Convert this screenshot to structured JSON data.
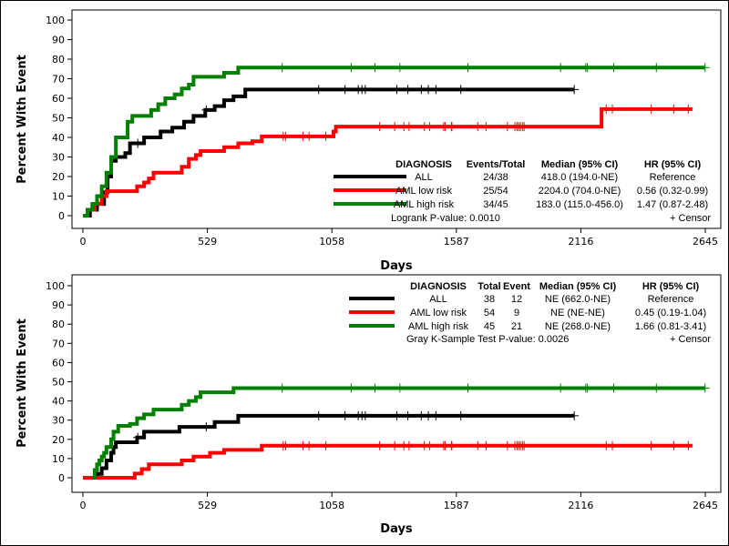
{
  "chart_data": [
    {
      "type": "line",
      "step": true,
      "xlabel": "Days",
      "ylabel": "Percent With Event",
      "xlim": [
        0,
        2645
      ],
      "ylim": [
        0,
        100
      ],
      "xticks": [
        0,
        529,
        1058,
        1587,
        2116,
        2645
      ],
      "yticks": [
        0,
        10,
        20,
        30,
        40,
        50,
        60,
        70,
        80,
        90,
        100
      ],
      "grid": false,
      "legend": {
        "placement": "bottom-right",
        "headers": [
          "DIAGNOSIS",
          "Events/Total",
          "Median (95% CI)",
          "HR (95% CI)"
        ],
        "rows": [
          [
            "ALL",
            "24/38",
            "418.0 (194.0-NE)",
            "Reference"
          ],
          [
            "AML low risk",
            "25/54",
            "2204.0 (704.0-NE)",
            "0.56 (0.32-0.99)"
          ],
          [
            "AML high risk",
            "34/45",
            "183.0 (115.0-456.0)",
            "1.47 (0.87-2.48)"
          ]
        ],
        "footer": "Logrank P-value: 0.0010",
        "censor_label": "+  Censor"
      },
      "series": [
        {
          "name": "ALL",
          "color": "#000000",
          "x": [
            0,
            30,
            60,
            90,
            105,
            120,
            140,
            180,
            200,
            260,
            330,
            380,
            430,
            470,
            520,
            560,
            600,
            640,
            690,
            2088
          ],
          "y": [
            0,
            3,
            6,
            12,
            20,
            28,
            30,
            32,
            37,
            40,
            43,
            45,
            48,
            51,
            54,
            56,
            59,
            61,
            64.5,
            64.5
          ],
          "censor_x": [
            233,
            524,
            1002,
            1114,
            1170,
            1186,
            1200,
            1334,
            1381,
            1438,
            1468,
            1500,
            1606,
            2088
          ]
        },
        {
          "name": "AML low risk",
          "color": "#ff0000",
          "x": [
            0,
            20,
            50,
            80,
            100,
            200,
            230,
            260,
            280,
            300,
            400,
            420,
            450,
            480,
            500,
            600,
            660,
            720,
            760,
            1055,
            1065,
            1075,
            2204,
            2204,
            2590
          ],
          "y": [
            0,
            3,
            6,
            10,
            12.5,
            12.5,
            15,
            17,
            19,
            22,
            22,
            25,
            29,
            31,
            33,
            35,
            37,
            38,
            40.5,
            40.5,
            43,
            45.5,
            45.5,
            54.5,
            54.5
          ],
          "censor_x": [
            851,
            861,
            935,
            961,
            1032,
            1261,
            1325,
            1364,
            1386,
            1451,
            1473,
            1533,
            1539,
            1566,
            1568,
            1678,
            1713,
            1804,
            1836,
            1845,
            1852,
            1859,
            1868,
            1875,
            2224,
            2250,
            2415,
            2511,
            2573
          ]
        },
        {
          "name": "AML high risk",
          "color": "#008000",
          "x": [
            0,
            20,
            40,
            60,
            80,
            100,
            120,
            140,
            170,
            190,
            210,
            270,
            290,
            320,
            350,
            390,
            420,
            450,
            470,
            580,
            600,
            660,
            2645
          ],
          "y": [
            0,
            3,
            6,
            10,
            15,
            22,
            30,
            40,
            40,
            48,
            51,
            51,
            54,
            57,
            60,
            62,
            65,
            67,
            71,
            71,
            73,
            75.7,
            75.7
          ],
          "censor_x": [
            847,
            1140,
            1241,
            1347,
            1636,
            2030,
            2137,
            2144,
            2256,
            2437,
            2644
          ]
        }
      ]
    },
    {
      "type": "line",
      "step": true,
      "xlabel": "Days",
      "ylabel": "Percent With Event",
      "xlim": [
        0,
        2645
      ],
      "ylim": [
        0,
        100
      ],
      "xticks": [
        0,
        529,
        1058,
        1587,
        2116,
        2645
      ],
      "yticks": [
        0,
        10,
        20,
        30,
        40,
        50,
        60,
        70,
        80,
        90,
        100
      ],
      "grid": false,
      "legend": {
        "placement": "top-right",
        "headers": [
          "DIAGNOSIS",
          "Total",
          "Event",
          "Median (95% CI)",
          "HR (95% CI)"
        ],
        "rows": [
          [
            "ALL",
            "38",
            "12",
            "NE (662.0-NE)",
            "Reference"
          ],
          [
            "AML low risk",
            "54",
            "9",
            "NE (NE-NE)",
            "0.45 (0.19-1.04)"
          ],
          [
            "AML high risk",
            "45",
            "21",
            "NE (268.0-NE)",
            "1.66 (0.81-3.41)"
          ]
        ],
        "footer": "Gray K-Sample Test P-value: 0.0026",
        "censor_label": "+  Censor"
      },
      "series": [
        {
          "name": "ALL",
          "color": "#000000",
          "x": [
            0,
            60,
            80,
            100,
            120,
            130,
            140,
            200,
            230,
            260,
            400,
            410,
            530,
            560,
            640,
            660,
            2088
          ],
          "y": [
            0,
            2,
            5,
            9,
            13,
            16,
            18.5,
            18.5,
            21,
            24,
            24,
            26.5,
            26.5,
            29,
            29,
            32.3,
            32.3
          ],
          "censor_x": [
            233,
            524,
            1002,
            1114,
            1170,
            1186,
            1200,
            1334,
            1381,
            1438,
            1468,
            1500,
            1606,
            2088
          ]
        },
        {
          "name": "AML low risk",
          "color": "#ff0000",
          "x": [
            0,
            200,
            220,
            250,
            280,
            400,
            420,
            470,
            540,
            600,
            740,
            760,
            2590
          ],
          "y": [
            0,
            0,
            2.2,
            4.5,
            7,
            7,
            9,
            11,
            13,
            14.5,
            14.5,
            16.7,
            16.7
          ],
          "censor_x": [
            851,
            861,
            935,
            961,
            1032,
            1261,
            1325,
            1364,
            1386,
            1451,
            1473,
            1533,
            1539,
            1566,
            1568,
            1678,
            1713,
            1804,
            1836,
            1845,
            1852,
            1859,
            1868,
            1875,
            2224,
            2250,
            2415,
            2511,
            2573
          ]
        },
        {
          "name": "AML high risk",
          "color": "#008000",
          "x": [
            40,
            50,
            60,
            70,
            80,
            90,
            100,
            120,
            130,
            150,
            200,
            230,
            260,
            300,
            390,
            420,
            450,
            480,
            500,
            630,
            640,
            2645
          ],
          "y": [
            0,
            4,
            7,
            9,
            11,
            13,
            16,
            20,
            24,
            27,
            28,
            31,
            33,
            35.5,
            35.5,
            38,
            40,
            42,
            44.5,
            44.5,
            46.7,
            46.7
          ],
          "censor_x": [
            847,
            1140,
            1241,
            1347,
            1636,
            2030,
            2137,
            2144,
            2256,
            2437,
            2644
          ]
        }
      ]
    }
  ]
}
